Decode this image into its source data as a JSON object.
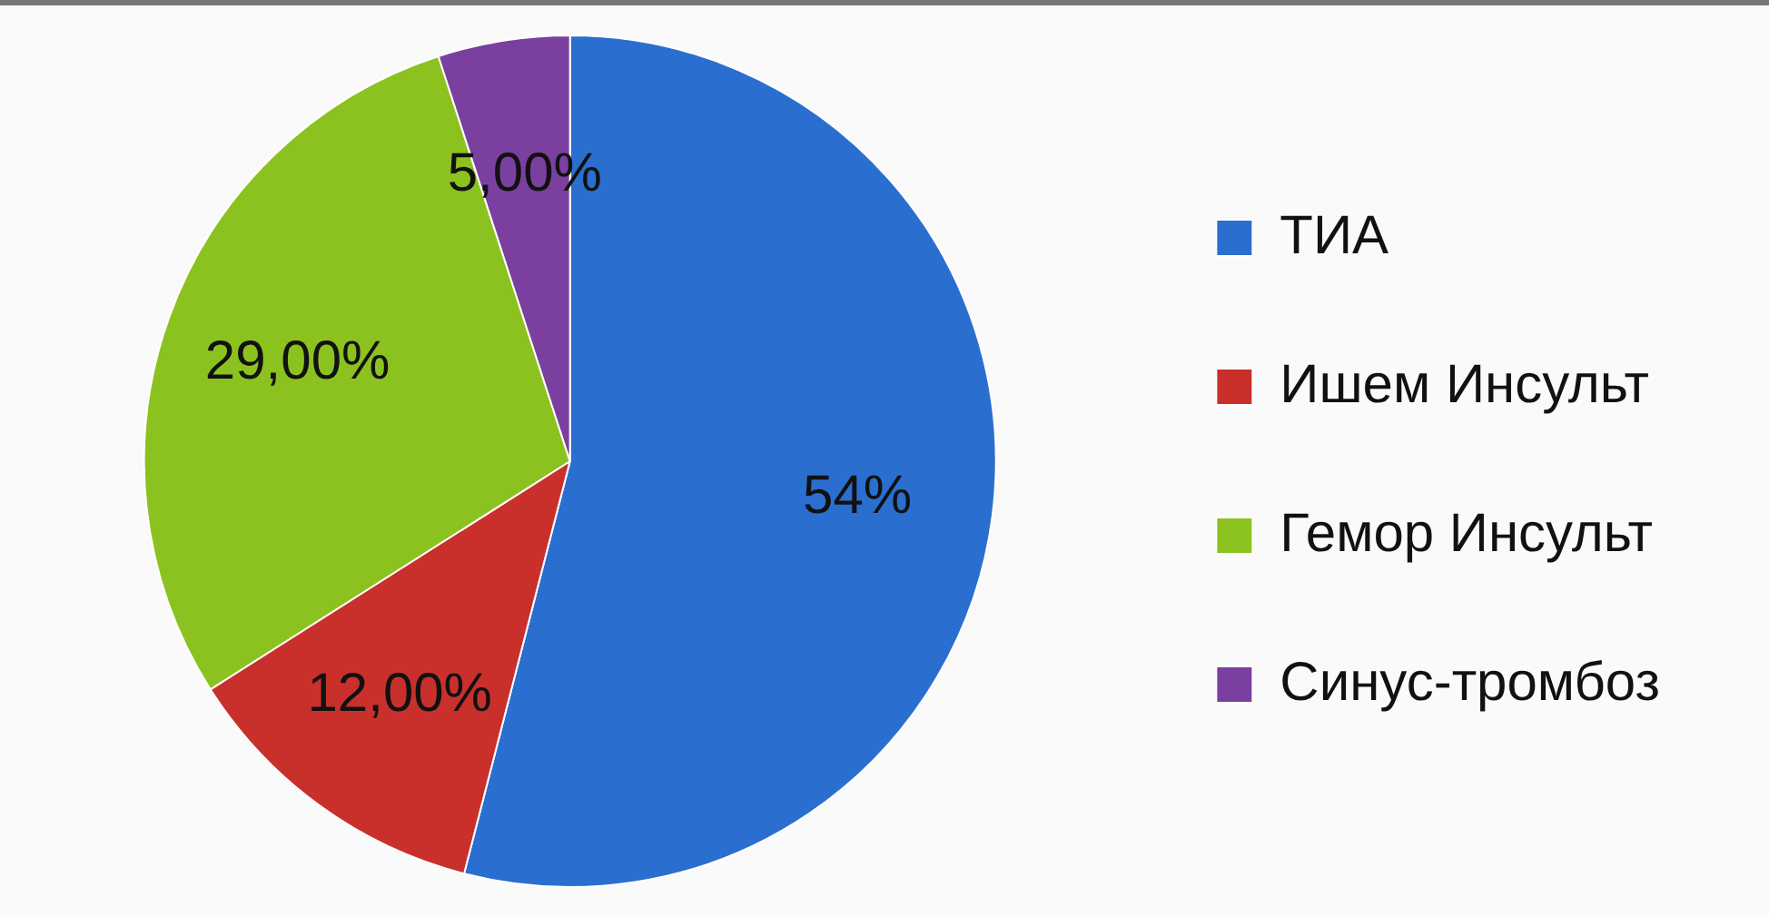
{
  "chart_data": {
    "type": "pie",
    "categories": [
      "ТИА",
      "Ишем Инсульт",
      "Гемор Инсульт",
      "Синус-тромбоз"
    ],
    "values": [
      54,
      12,
      29,
      5
    ],
    "colors": [
      "#2a6fcf",
      "#c9302c",
      "#8cc21f",
      "#7b3fa0"
    ],
    "value_labels": [
      "54%",
      "12,00%",
      "29,00%",
      "5,00%"
    ],
    "legend": "right"
  }
}
